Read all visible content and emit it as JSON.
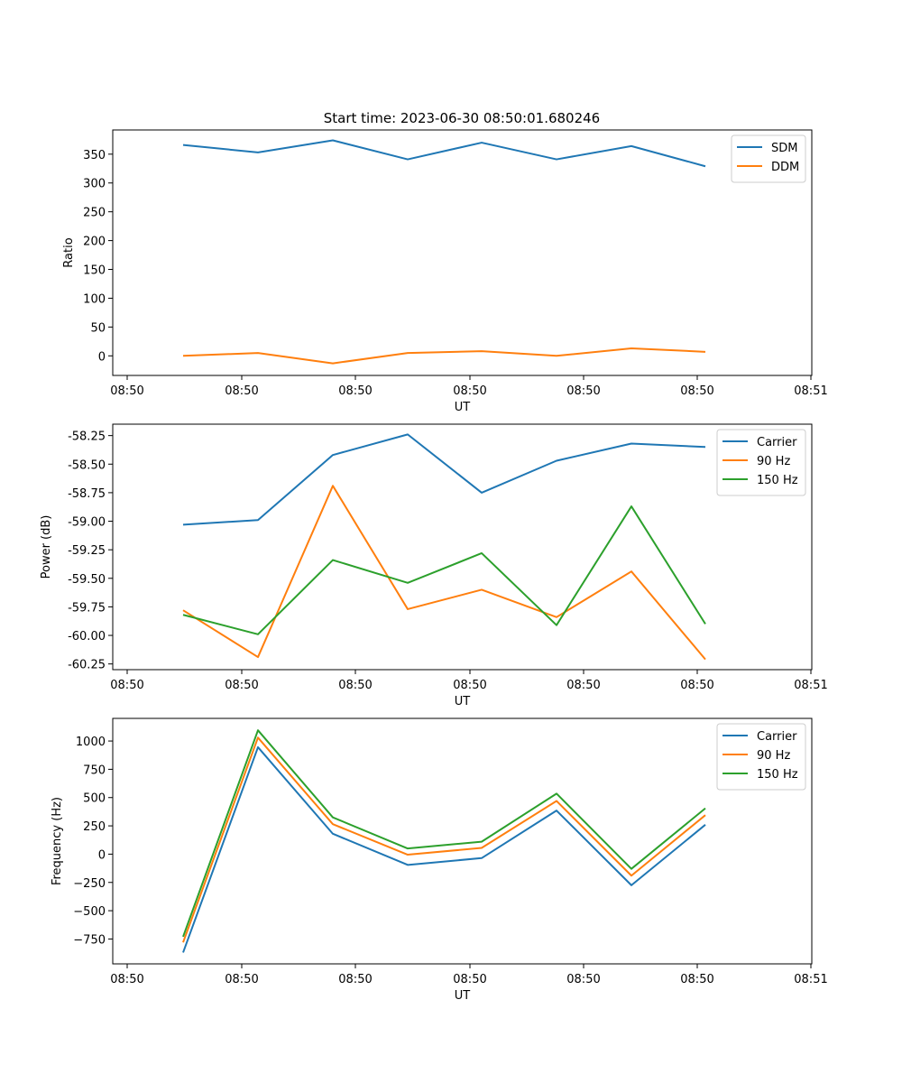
{
  "figure_title": "Start time: 2023-06-30 08:50:01.680246",
  "colors": {
    "c0": "#1f77b4",
    "c1": "#ff7f0e",
    "c2": "#2ca02c"
  },
  "chart_data": [
    {
      "type": "line",
      "xlabel": "UT",
      "ylabel": "Ratio",
      "x_tick_labels": [
        "08:50",
        "08:50",
        "08:50",
        "08:50",
        "08:50",
        "08:50",
        "08:51"
      ],
      "y_ticks": [
        0,
        50,
        100,
        150,
        200,
        250,
        300,
        350
      ],
      "y_tick_labels": [
        "0",
        "50",
        "100",
        "150",
        "200",
        "250",
        "300",
        "350"
      ],
      "ylim": [
        -34,
        392
      ],
      "legend_position": "top-right",
      "series": [
        {
          "name": "SDM",
          "values": [
            366,
            353,
            374,
            341,
            370,
            341,
            364,
            329
          ]
        },
        {
          "name": "DDM",
          "values": [
            0,
            5,
            -13,
            5,
            8,
            0,
            13,
            7
          ]
        }
      ]
    },
    {
      "type": "line",
      "xlabel": "UT",
      "ylabel": "Power (dB)",
      "x_tick_labels": [
        "08:50",
        "08:50",
        "08:50",
        "08:50",
        "08:50",
        "08:50",
        "08:51"
      ],
      "y_ticks": [
        -60.25,
        -60.0,
        -59.75,
        -59.5,
        -59.25,
        -59.0,
        -58.75,
        -58.5,
        -58.25
      ],
      "y_tick_labels": [
        "-60.25",
        "-60.00",
        "-59.75",
        "-59.50",
        "-59.25",
        "-59.00",
        "-58.75",
        "-58.50",
        "-58.25"
      ],
      "ylim": [
        -60.3,
        -58.15
      ],
      "legend_position": "top-right",
      "series": [
        {
          "name": "Carrier",
          "values": [
            -59.03,
            -58.99,
            -58.42,
            -58.24,
            -58.75,
            -58.47,
            -58.32,
            -58.35
          ]
        },
        {
          "name": "90 Hz",
          "values": [
            -59.78,
            -60.19,
            -58.69,
            -59.77,
            -59.6,
            -59.84,
            -59.44,
            -60.21
          ]
        },
        {
          "name": "150 Hz",
          "values": [
            -59.82,
            -59.99,
            -59.34,
            -59.54,
            -59.28,
            -59.91,
            -58.87,
            -59.9
          ]
        }
      ]
    },
    {
      "type": "line",
      "xlabel": "UT",
      "ylabel": "Frequency (Hz)",
      "x_tick_labels": [
        "08:50",
        "08:50",
        "08:50",
        "08:50",
        "08:50",
        "08:50",
        "08:51"
      ],
      "y_ticks": [
        -750,
        -500,
        -250,
        0,
        250,
        500,
        750,
        1000
      ],
      "y_tick_labels": [
        "−750",
        "−500",
        "−250",
        "0",
        "250",
        "500",
        "750",
        "1000"
      ],
      "ylim": [
        -970,
        1200
      ],
      "legend_position": "top-right",
      "series": [
        {
          "name": "Carrier",
          "values": [
            -870,
            945,
            180,
            -95,
            -35,
            385,
            -275,
            260
          ]
        },
        {
          "name": "90 Hz",
          "values": [
            -780,
            1030,
            265,
            -5,
            55,
            470,
            -190,
            345
          ]
        },
        {
          "name": "150 Hz",
          "values": [
            -730,
            1095,
            325,
            50,
            110,
            535,
            -130,
            405
          ]
        }
      ]
    }
  ]
}
